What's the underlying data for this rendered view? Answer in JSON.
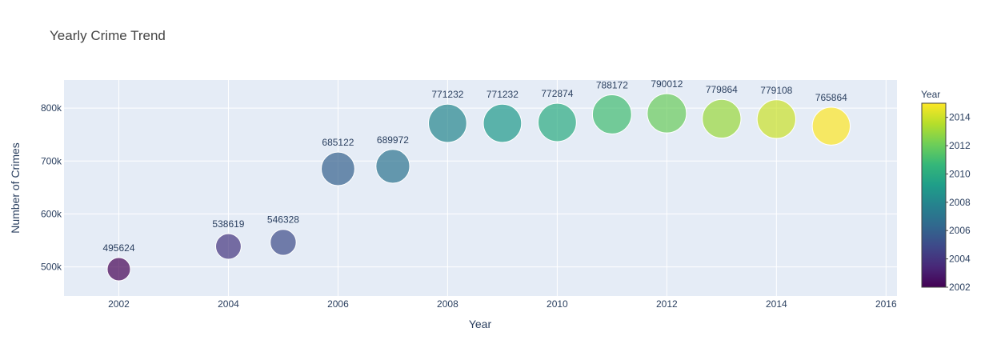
{
  "chart_data": {
    "type": "scatter",
    "title": "Yearly Crime Trend",
    "xlabel": "Year",
    "ylabel": "Number of Crimes",
    "x": [
      2002,
      2004,
      2005,
      2006,
      2007,
      2008,
      2009,
      2010,
      2011,
      2012,
      2013,
      2014,
      2015
    ],
    "y": [
      495624,
      538619,
      546328,
      685122,
      689972,
      771232,
      771232,
      772874,
      788172,
      790012,
      779864,
      779108,
      765864
    ],
    "data_labels": [
      "495624",
      "538619",
      "546328",
      "685122",
      "689972",
      "771232",
      "771232",
      "772874",
      "788172",
      "790012",
      "779864",
      "779108",
      "765864"
    ],
    "marker_size_by": "y",
    "marker_color_by": "x",
    "colorscale": "Viridis",
    "marker_opacity": 0.7,
    "xlim": [
      2001,
      2016.2
    ],
    "ylim": [
      445000,
      853000
    ],
    "x_ticks": [
      2002,
      2004,
      2006,
      2008,
      2010,
      2012,
      2014,
      2016
    ],
    "x_tick_labels": [
      "2002",
      "2004",
      "2006",
      "2008",
      "2010",
      "2012",
      "2014",
      "2016"
    ],
    "y_ticks": [
      500000,
      600000,
      700000,
      800000
    ],
    "y_tick_labels": [
      "500k",
      "600k",
      "700k",
      "800k"
    ],
    "grid": true,
    "colorbar": {
      "title": "Year",
      "range": [
        2002,
        2015
      ],
      "ticks": [
        2002,
        2004,
        2006,
        2008,
        2010,
        2012,
        2014
      ],
      "tick_labels": [
        "2002",
        "2004",
        "2006",
        "2008",
        "2010",
        "2012",
        "2014"
      ],
      "placement": "right"
    },
    "colors": {
      "plot_bg": "#e5ecf6",
      "grid": "#ffffff",
      "text": "#2a3f5f",
      "title": "#444444"
    }
  }
}
